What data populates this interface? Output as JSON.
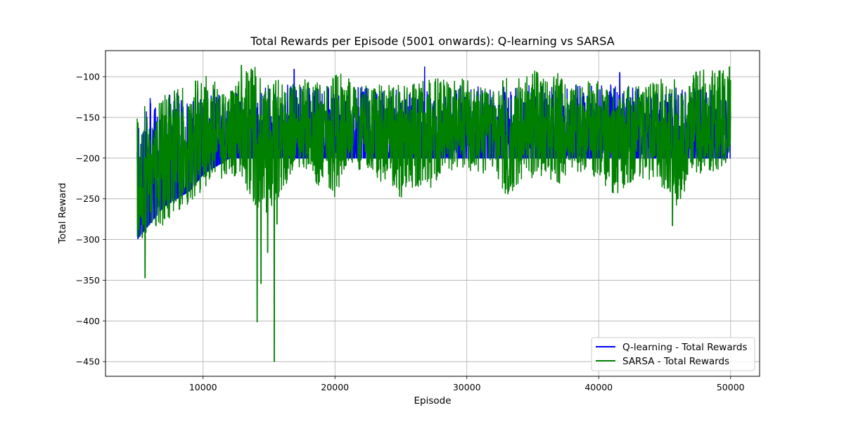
{
  "chart_data": {
    "type": "line",
    "title": "Total Rewards per Episode (5001 onwards): Q-learning vs SARSA",
    "xlabel": "Episode",
    "ylabel": "Total Reward",
    "xlim": [
      2600,
      52200
    ],
    "ylim": [
      -468,
      -68
    ],
    "xticks": [
      10000,
      20000,
      30000,
      40000,
      50000
    ],
    "xtick_labels": [
      "10000",
      "20000",
      "30000",
      "40000",
      "50000"
    ],
    "yticks": [
      -100,
      -150,
      -200,
      -250,
      -300,
      -350,
      -400,
      -450
    ],
    "ytick_labels": [
      "−100",
      "−150",
      "−200",
      "−250",
      "−300",
      "−350",
      "−400",
      "−450"
    ],
    "grid": true,
    "legend_position": "lower-right",
    "series": [
      {
        "name": "Q-learning - Total Rewards",
        "color": "#0000ff",
        "episode_range": [
          5001,
          50000
        ],
        "x": [
          5001,
          5500,
          6000,
          7000,
          8000,
          9000,
          10000,
          11000,
          12000,
          13000,
          14000,
          15000,
          16000,
          17000,
          18000,
          19000,
          20000,
          21000,
          22000,
          23000,
          24000,
          25000,
          26000,
          27000,
          28000,
          29000,
          30000,
          31000,
          32000,
          33000,
          34000,
          35000,
          36000,
          37000,
          38000,
          39000,
          40000,
          41000,
          42000,
          43000,
          44000,
          45000,
          46000,
          47000,
          48000,
          49000,
          50000
        ],
        "upper": [
          -150,
          -140,
          -125,
          -120,
          -120,
          -115,
          -115,
          -115,
          -115,
          -112,
          -112,
          -112,
          -110,
          -110,
          -112,
          -112,
          -110,
          -112,
          -112,
          -112,
          -112,
          -115,
          -112,
          -110,
          -110,
          -110,
          -112,
          -112,
          -112,
          -110,
          -110,
          -110,
          -110,
          -110,
          -110,
          -110,
          -110,
          -110,
          -112,
          -112,
          -112,
          -112,
          -112,
          -112,
          -110,
          -110,
          -110
        ],
        "lower": [
          -300,
          -290,
          -280,
          -260,
          -250,
          -240,
          -220,
          -210,
          -200,
          -200,
          -200,
          -200,
          -200,
          -200,
          -200,
          -200,
          -200,
          -200,
          -200,
          -200,
          -200,
          -200,
          -200,
          -200,
          -200,
          -200,
          -200,
          -200,
          -200,
          -200,
          -200,
          -200,
          -200,
          -200,
          -200,
          -200,
          -200,
          -200,
          -200,
          -200,
          -200,
          -200,
          -200,
          -200,
          -200,
          -200,
          -200
        ],
        "annotated_extremes": [
          {
            "x": 16900,
            "y": -91
          },
          {
            "x": 26800,
            "y": -88
          },
          {
            "x": 41600,
            "y": -95
          }
        ]
      },
      {
        "name": "SARSA - Total Rewards",
        "color": "#008000",
        "episode_range": [
          5001,
          50000
        ],
        "x": [
          5001,
          5500,
          6000,
          7000,
          8000,
          9000,
          10000,
          11000,
          12000,
          13000,
          14000,
          15000,
          16000,
          17000,
          18000,
          19000,
          20000,
          21000,
          22000,
          23000,
          24000,
          25000,
          26000,
          27000,
          28000,
          29000,
          30000,
          31000,
          32000,
          33000,
          34000,
          35000,
          36000,
          37000,
          38000,
          39000,
          40000,
          41000,
          42000,
          43000,
          44000,
          45000,
          46000,
          47000,
          48000,
          49000,
          50000
        ],
        "upper": [
          -150,
          -130,
          -125,
          -120,
          -115,
          -112,
          -95,
          -105,
          -110,
          -95,
          -88,
          -95,
          -105,
          -110,
          -98,
          -110,
          -93,
          -100,
          -110,
          -108,
          -110,
          -110,
          -108,
          -100,
          -97,
          -100,
          -100,
          -105,
          -108,
          -100,
          -95,
          -92,
          -92,
          -95,
          -108,
          -105,
          -105,
          -108,
          -110,
          -110,
          -108,
          -100,
          -100,
          -95,
          -90,
          -88,
          -90
        ],
        "lower": [
          -305,
          -300,
          -290,
          -285,
          -270,
          -255,
          -240,
          -230,
          -220,
          -230,
          -260,
          -270,
          -240,
          -215,
          -220,
          -240,
          -250,
          -215,
          -215,
          -220,
          -240,
          -250,
          -235,
          -240,
          -225,
          -215,
          -215,
          -220,
          -215,
          -250,
          -230,
          -230,
          -225,
          -235,
          -225,
          -220,
          -225,
          -250,
          -240,
          -225,
          -230,
          -240,
          -260,
          -225,
          -220,
          -215,
          -205
        ],
        "annotated_extremes": [
          {
            "x": 5600,
            "y": -347
          },
          {
            "x": 14100,
            "y": -401
          },
          {
            "x": 14400,
            "y": -354
          },
          {
            "x": 14900,
            "y": -316
          },
          {
            "x": 15400,
            "y": -450
          },
          {
            "x": 15600,
            "y": -281
          },
          {
            "x": 12900,
            "y": -86
          },
          {
            "x": 45600,
            "y": -283
          },
          {
            "x": 49900,
            "y": -88
          }
        ]
      }
    ]
  }
}
